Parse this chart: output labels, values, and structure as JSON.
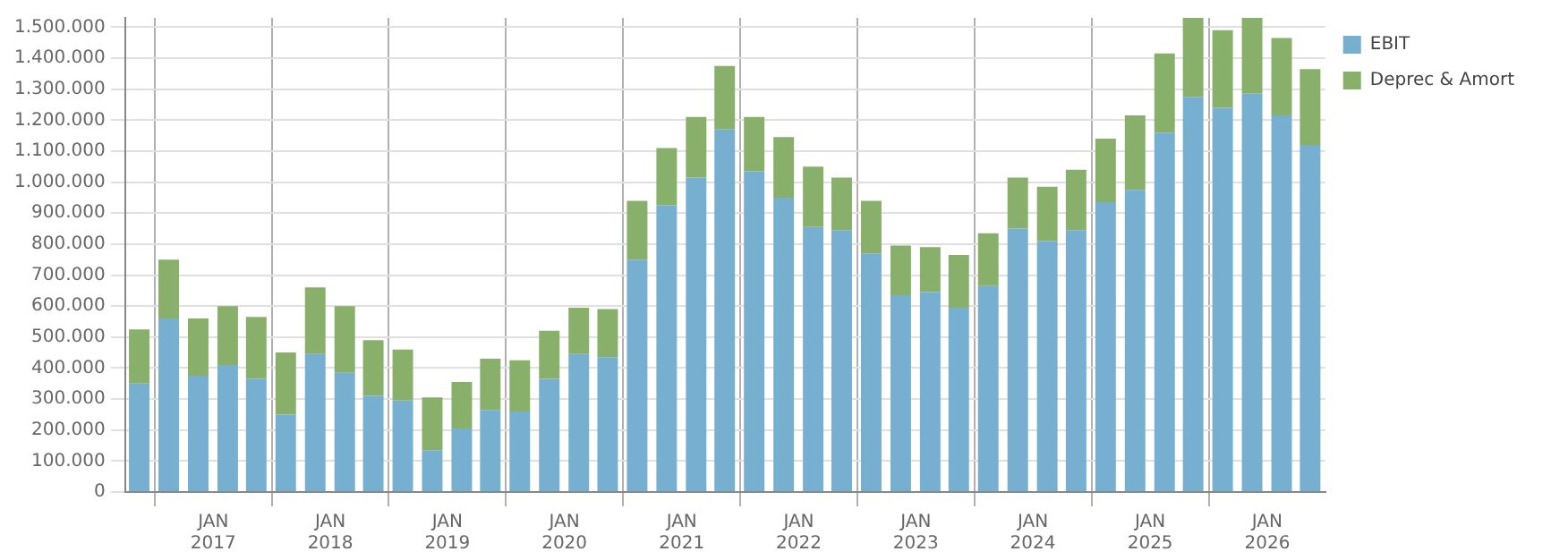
{
  "chart_data": {
    "type": "bar",
    "stacked": true,
    "grid": true,
    "legend": "top right",
    "x": [
      "2016-05-15",
      "2016-08-15",
      "2016-11-15",
      "2017-02-15",
      "2017-05-15",
      "2017-08-15",
      "2017-11-15",
      "2018-02-15",
      "2018-05-15",
      "2018-08-15",
      "2018-11-15",
      "2019-02-15",
      "2019-05-15",
      "2019-08-15",
      "2019-11-15",
      "2020-02-15",
      "2020-05-15",
      "2020-08-15",
      "2020-11-15",
      "2021-02-15",
      "2021-05-15",
      "2021-08-15",
      "2021-11-15",
      "2022-02-15",
      "2022-05-15",
      "2022-08-15",
      "2022-11-15",
      "2023-02-15",
      "2023-05-15",
      "2023-08-15",
      "2023-11-15",
      "2024-02-15",
      "2024-05-15",
      "2024-08-15",
      "2024-11-15",
      "2025-02-15",
      "2025-05-15",
      "2025-08-15",
      "2025-11-15",
      "2026-02-15",
      "2026-05-15"
    ],
    "xlim": [
      "2016-04-01",
      "2026-07-01"
    ],
    "xticks": [
      {
        "value": "2017-01-01",
        "label": "JAN 2017"
      },
      {
        "value": "2018-01-01",
        "label": "JAN 2018"
      },
      {
        "value": "2019-01-01",
        "label": "JAN 2019"
      },
      {
        "value": "2020-01-01",
        "label": "JAN 2020"
      },
      {
        "value": "2021-01-01",
        "label": "JAN 2021"
      },
      {
        "value": "2022-01-01",
        "label": "JAN 2022"
      },
      {
        "value": "2023-01-01",
        "label": "JAN 2023"
      },
      {
        "value": "2024-01-01",
        "label": "JAN 2024"
      },
      {
        "value": "2025-01-01",
        "label": "JAN 2025"
      },
      {
        "value": "2026-01-01",
        "label": "JAN 2026"
      }
    ],
    "ylim": [
      0,
      1530000
    ],
    "yticks": [
      {
        "value": 0,
        "label": "0"
      },
      {
        "value": 100000,
        "label": "100.000"
      },
      {
        "value": 200000,
        "label": "200.000"
      },
      {
        "value": 300000,
        "label": "300.000"
      },
      {
        "value": 400000,
        "label": "400.000"
      },
      {
        "value": 500000,
        "label": "500.000"
      },
      {
        "value": 600000,
        "label": "600.000"
      },
      {
        "value": 700000,
        "label": "700.000"
      },
      {
        "value": 800000,
        "label": "800.000"
      },
      {
        "value": 900000,
        "label": "900.000"
      },
      {
        "value": 1000000,
        "label": "1.000.000"
      },
      {
        "value": 1100000,
        "label": "1.100.000"
      },
      {
        "value": 1200000,
        "label": "1.200.000"
      },
      {
        "value": 1300000,
        "label": "1.300.000"
      },
      {
        "value": 1400000,
        "label": "1.400.000"
      },
      {
        "value": 1500000,
        "label": "1.500.000"
      }
    ],
    "series": [
      {
        "name": "EBIT",
        "color": "#76afd0",
        "values": [
          350000,
          560000,
          375000,
          410000,
          365000,
          250000,
          445000,
          385000,
          310000,
          295000,
          135000,
          205000,
          265000,
          260000,
          365000,
          445000,
          435000,
          750000,
          925000,
          1015000,
          1170000,
          1035000,
          950000,
          855000,
          845000,
          770000,
          635000,
          645000,
          595000,
          665000,
          850000,
          810000,
          845000,
          935000,
          975000,
          1160000,
          1275000,
          1240000,
          1285000,
          1215000,
          1120000
        ]
      },
      {
        "name": "Deprec & Amort",
        "color": "#88b06b",
        "values": [
          175000,
          190000,
          185000,
          190000,
          200000,
          200000,
          215000,
          215000,
          180000,
          165000,
          170000,
          150000,
          165000,
          165000,
          155000,
          150000,
          155000,
          190000,
          185000,
          195000,
          205000,
          175000,
          195000,
          195000,
          170000,
          170000,
          160000,
          145000,
          170000,
          170000,
          165000,
          175000,
          195000,
          205000,
          240000,
          255000,
          255000,
          250000,
          245000,
          250000,
          245000
        ]
      }
    ]
  }
}
